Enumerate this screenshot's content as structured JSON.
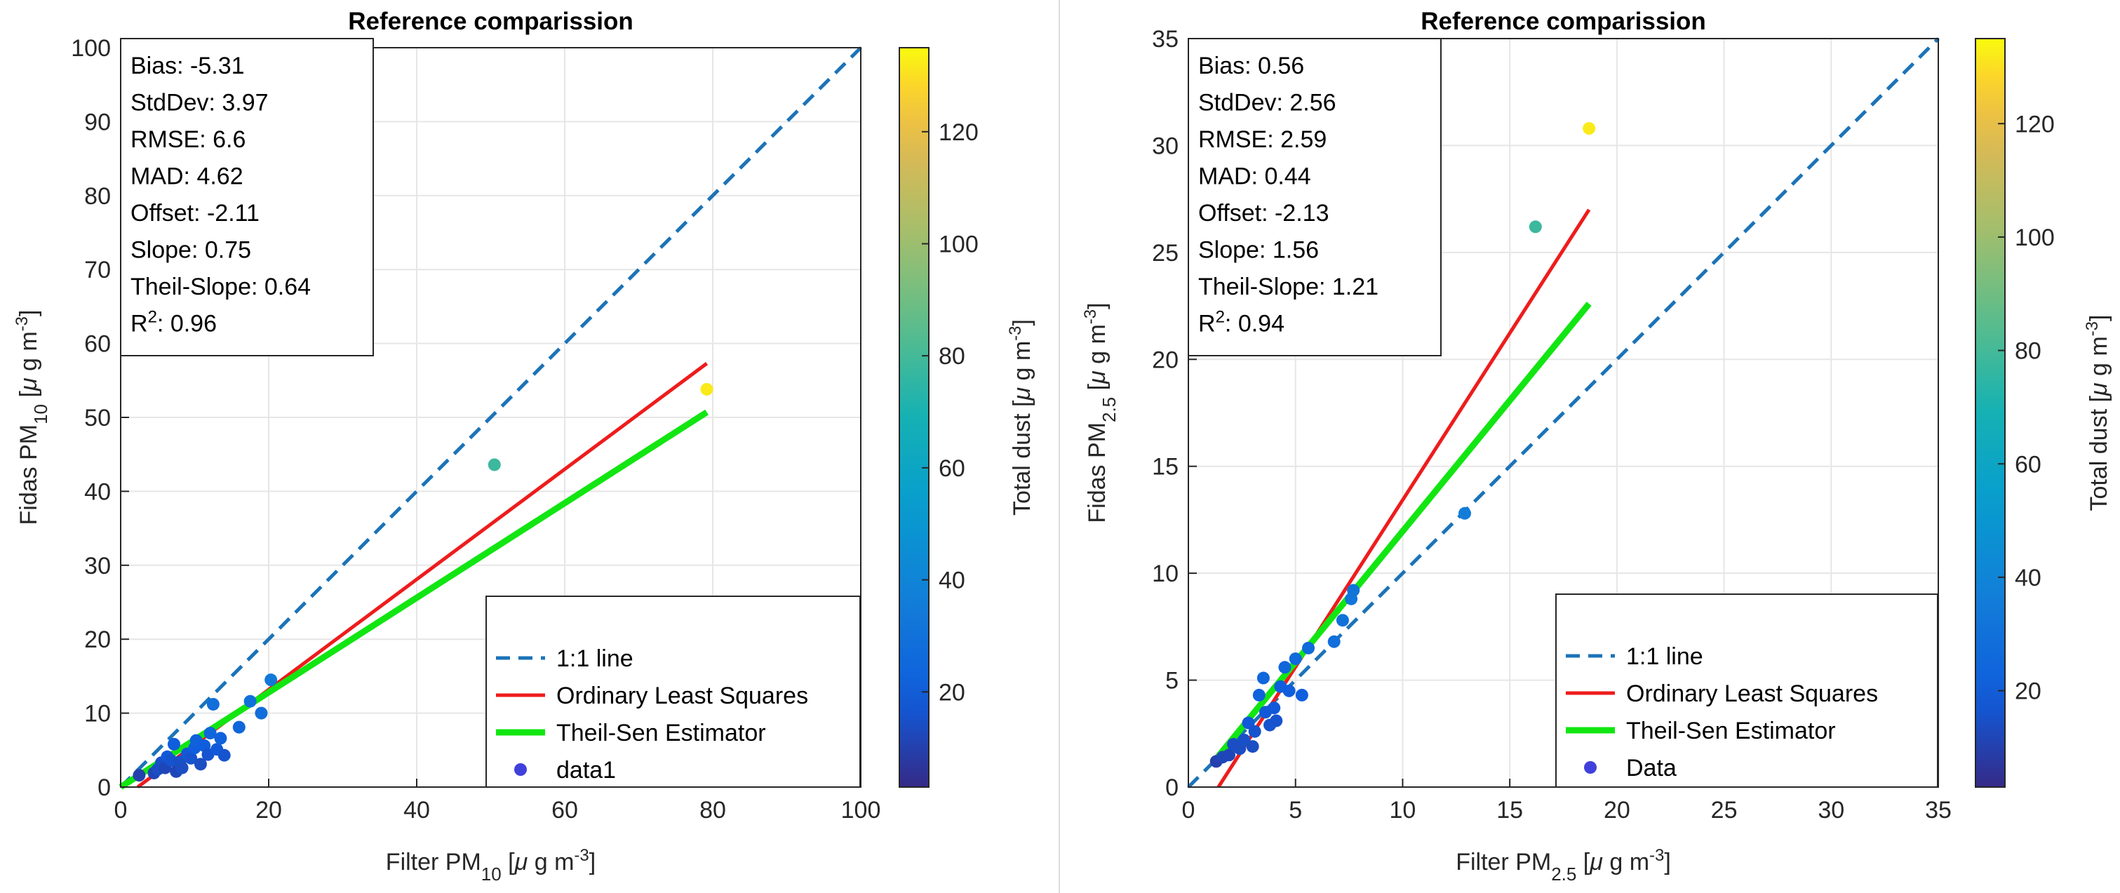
{
  "chart_data": [
    {
      "type": "scatter",
      "title": "Reference comparission",
      "xlabel": {
        "base": "Filter PM",
        "sub": "10",
        "unit_open": " [",
        "mu": "μ",
        "unit_mid": " g m",
        "sup": "-3",
        "unit_close": "]"
      },
      "ylabel": {
        "base": "Fidas PM",
        "sub": "10",
        "unit_open": " [",
        "mu": "μ",
        "unit_mid": " g m",
        "sup": "-3",
        "unit_close": "]"
      },
      "xlim": [
        0,
        100
      ],
      "ylim": [
        0,
        100
      ],
      "xticks": [
        0,
        20,
        40,
        60,
        80,
        100
      ],
      "yticks": [
        0,
        10,
        20,
        30,
        40,
        50,
        60,
        70,
        80,
        90,
        100
      ],
      "grid": true,
      "stats": [
        {
          "label": "Bias:",
          "value": "-5.31"
        },
        {
          "label": "StdDev:",
          "value": "3.97"
        },
        {
          "label": "RMSE:",
          "value": "6.6"
        },
        {
          "label": "MAD:",
          "value": "4.62"
        },
        {
          "label": "Offset:",
          "value": "-2.11"
        },
        {
          "label": "Slope:",
          "value": "0.75"
        },
        {
          "label": "Theil-Slope:",
          "value": "0.64"
        },
        {
          "label": "R",
          "sup": "2",
          "suffix": ":",
          "value": "0.96"
        }
      ],
      "lines": {
        "one_to_one": {
          "x": [
            0,
            100
          ],
          "y": [
            0,
            100
          ]
        },
        "ols": {
          "x": [
            2.3,
            79.2
          ],
          "y": [
            0,
            57.3
          ]
        },
        "theil_sen": {
          "x": [
            0,
            79.2
          ],
          "y": [
            0,
            50.7
          ]
        }
      },
      "legend": {
        "position": "bottom-right",
        "entries": [
          {
            "key": "one_to_one",
            "label": "1:1 line"
          },
          {
            "key": "ols",
            "label": "Ordinary Least Squares"
          },
          {
            "key": "theil_sen",
            "label": "Theil-Sen Estimator"
          },
          {
            "key": "data",
            "label": "data1"
          }
        ]
      },
      "colorbar": {
        "label": {
          "base": "Total dust [",
          "mu": "μ",
          "mid": " g m",
          "sup": "-3",
          "close": "]"
        },
        "range": [
          3,
          135
        ],
        "ticks": [
          20,
          40,
          60,
          80,
          100,
          120
        ]
      },
      "points": [
        {
          "x": 2.5,
          "y": 1.6,
          "c": 10
        },
        {
          "x": 4.5,
          "y": 1.9,
          "c": 12
        },
        {
          "x": 5,
          "y": 2.4,
          "c": 14
        },
        {
          "x": 5.5,
          "y": 3.3,
          "c": 15
        },
        {
          "x": 6,
          "y": 2.6,
          "c": 12
        },
        {
          "x": 6.3,
          "y": 4.1,
          "c": 18
        },
        {
          "x": 6.8,
          "y": 3.6,
          "c": 16
        },
        {
          "x": 7.2,
          "y": 5.8,
          "c": 20
        },
        {
          "x": 7.5,
          "y": 2.1,
          "c": 12
        },
        {
          "x": 8,
          "y": 3.4,
          "c": 15
        },
        {
          "x": 8.3,
          "y": 2.6,
          "c": 14
        },
        {
          "x": 9,
          "y": 4.5,
          "c": 18
        },
        {
          "x": 9.5,
          "y": 3.9,
          "c": 16
        },
        {
          "x": 10,
          "y": 5.3,
          "c": 20
        },
        {
          "x": 10.2,
          "y": 6.3,
          "c": 22
        },
        {
          "x": 10.8,
          "y": 3.1,
          "c": 14
        },
        {
          "x": 11.3,
          "y": 5.6,
          "c": 20
        },
        {
          "x": 11.8,
          "y": 4.4,
          "c": 16
        },
        {
          "x": 12.1,
          "y": 7.3,
          "c": 24
        },
        {
          "x": 12.5,
          "y": 11.2,
          "c": 28
        },
        {
          "x": 13,
          "y": 5.1,
          "c": 18
        },
        {
          "x": 13.5,
          "y": 6.6,
          "c": 22
        },
        {
          "x": 14,
          "y": 4.3,
          "c": 16
        },
        {
          "x": 16,
          "y": 8.1,
          "c": 24
        },
        {
          "x": 17.5,
          "y": 11.6,
          "c": 30
        },
        {
          "x": 19,
          "y": 10,
          "c": 28
        },
        {
          "x": 20.3,
          "y": 14.5,
          "c": 34
        },
        {
          "x": 50.5,
          "y": 43.6,
          "c": 78
        },
        {
          "x": 79.2,
          "y": 53.8,
          "c": 132
        }
      ]
    },
    {
      "type": "scatter",
      "title": "Reference comparission",
      "xlabel": {
        "base": "Filter PM",
        "sub": "2.5",
        "unit_open": " [",
        "mu": "μ",
        "unit_mid": " g m",
        "sup": "-3",
        "unit_close": "]"
      },
      "ylabel": {
        "base": "Fidas PM",
        "sub": "2.5",
        "unit_open": " [",
        "mu": "μ",
        "unit_mid": " g m",
        "sup": "-3",
        "unit_close": "]"
      },
      "xlim": [
        0,
        35
      ],
      "ylim": [
        0,
        35
      ],
      "xticks": [
        0,
        5,
        10,
        15,
        20,
        25,
        30,
        35
      ],
      "yticks": [
        0,
        5,
        10,
        15,
        20,
        25,
        30,
        35
      ],
      "grid": true,
      "stats": [
        {
          "label": "Bias:",
          "value": "0.56"
        },
        {
          "label": "StdDev:",
          "value": "2.56"
        },
        {
          "label": "RMSE:",
          "value": "2.59"
        },
        {
          "label": "MAD:",
          "value": "0.44"
        },
        {
          "label": "Offset:",
          "value": "-2.13"
        },
        {
          "label": "Slope:",
          "value": "1.56"
        },
        {
          "label": "Theil-Slope:",
          "value": "1.21"
        },
        {
          "label": "R",
          "sup": "2",
          "suffix": ":",
          "value": "0.94"
        }
      ],
      "lines": {
        "one_to_one": {
          "x": [
            0,
            35
          ],
          "y": [
            0,
            35
          ]
        },
        "ols": {
          "x": [
            1.4,
            18.7
          ],
          "y": [
            0,
            27
          ]
        },
        "theil_sen": {
          "x": [
            1.2,
            18.7
          ],
          "y": [
            1.2,
            22.6
          ]
        }
      },
      "legend": {
        "position": "bottom-right",
        "entries": [
          {
            "key": "one_to_one",
            "label": "1:1 line"
          },
          {
            "key": "ols",
            "label": "Ordinary Least Squares"
          },
          {
            "key": "theil_sen",
            "label": "Theil-Sen Estimator"
          },
          {
            "key": "data",
            "label": "Data"
          }
        ]
      },
      "colorbar": {
        "label": {
          "base": "Total dust [",
          "mu": "μ",
          "mid": " g m",
          "sup": "-3",
          "close": "]"
        },
        "range": [
          3,
          135
        ],
        "ticks": [
          20,
          40,
          60,
          80,
          100,
          120
        ]
      },
      "points": [
        {
          "x": 1.3,
          "y": 1.2,
          "c": 10
        },
        {
          "x": 1.6,
          "y": 1.4,
          "c": 12
        },
        {
          "x": 1.9,
          "y": 1.5,
          "c": 12
        },
        {
          "x": 2.1,
          "y": 2,
          "c": 14
        },
        {
          "x": 2.4,
          "y": 1.8,
          "c": 14
        },
        {
          "x": 2.6,
          "y": 2.2,
          "c": 15
        },
        {
          "x": 2.8,
          "y": 3,
          "c": 18
        },
        {
          "x": 3,
          "y": 1.9,
          "c": 14
        },
        {
          "x": 3.1,
          "y": 2.6,
          "c": 16
        },
        {
          "x": 3.3,
          "y": 4.3,
          "c": 22
        },
        {
          "x": 3.5,
          "y": 5.1,
          "c": 24
        },
        {
          "x": 3.6,
          "y": 3.5,
          "c": 18
        },
        {
          "x": 3.8,
          "y": 2.9,
          "c": 16
        },
        {
          "x": 4,
          "y": 3.7,
          "c": 18
        },
        {
          "x": 4.1,
          "y": 3.1,
          "c": 16
        },
        {
          "x": 4.3,
          "y": 4.7,
          "c": 20
        },
        {
          "x": 4.5,
          "y": 5.6,
          "c": 24
        },
        {
          "x": 4.7,
          "y": 4.5,
          "c": 20
        },
        {
          "x": 5,
          "y": 6,
          "c": 26
        },
        {
          "x": 5.3,
          "y": 4.3,
          "c": 20
        },
        {
          "x": 5.6,
          "y": 6.5,
          "c": 26
        },
        {
          "x": 6.8,
          "y": 6.8,
          "c": 28
        },
        {
          "x": 7.2,
          "y": 7.8,
          "c": 30
        },
        {
          "x": 7.6,
          "y": 8.8,
          "c": 32
        },
        {
          "x": 7.7,
          "y": 9.2,
          "c": 32
        },
        {
          "x": 12.9,
          "y": 12.8,
          "c": 36
        },
        {
          "x": 16.2,
          "y": 26.2,
          "c": 78
        },
        {
          "x": 18.7,
          "y": 30.8,
          "c": 132
        }
      ]
    }
  ]
}
